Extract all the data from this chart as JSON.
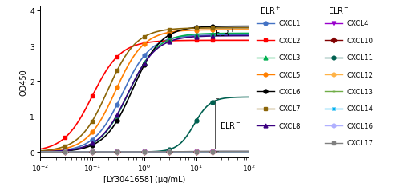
{
  "xlabel": "[LY3041658] (μg/mL)",
  "ylabel": "OD450",
  "xlim": [
    0.01,
    100
  ],
  "ylim": [
    -0.15,
    4.1
  ],
  "yticks": [
    0,
    1,
    2,
    3,
    4
  ],
  "series": [
    {
      "name": "CXCL1",
      "color": "#4472C4",
      "marker": "o",
      "group": "pos",
      "bottom": 0.0,
      "top": 3.3,
      "ec50": 0.38,
      "hill": 1.6
    },
    {
      "name": "CXCL2",
      "color": "#FF0000",
      "marker": "s",
      "group": "pos",
      "bottom": 0.0,
      "top": 3.15,
      "ec50": 0.1,
      "hill": 1.6
    },
    {
      "name": "CXCL3",
      "color": "#00B050",
      "marker": "^",
      "group": "pos",
      "bottom": 0.0,
      "top": 3.35,
      "ec50": 0.5,
      "hill": 1.6
    },
    {
      "name": "CXCL5",
      "color": "#FF7F00",
      "marker": "o",
      "group": "pos",
      "bottom": 0.0,
      "top": 3.45,
      "ec50": 0.28,
      "hill": 1.6
    },
    {
      "name": "CXCL6",
      "color": "#000000",
      "marker": "o",
      "group": "pos",
      "bottom": 0.0,
      "top": 3.55,
      "ec50": 0.6,
      "hill": 1.6
    },
    {
      "name": "CXCL7",
      "color": "#8B6508",
      "marker": "s",
      "group": "pos",
      "bottom": 0.0,
      "top": 3.5,
      "ec50": 0.2,
      "hill": 1.6
    },
    {
      "name": "CXCL8",
      "color": "#3B0080",
      "marker": "^",
      "group": "pos",
      "bottom": 0.0,
      "top": 3.28,
      "ec50": 0.48,
      "hill": 1.6
    },
    {
      "name": "CXCL4",
      "color": "#9900CC",
      "marker": "v",
      "group": "neg",
      "bottom": 0.0,
      "top": 0.01,
      "ec50": 1.0,
      "hill": 1.0
    },
    {
      "name": "CXCL10",
      "color": "#800000",
      "marker": "D",
      "group": "neg",
      "bottom": 0.0,
      "top": 0.01,
      "ec50": 1.0,
      "hill": 1.0
    },
    {
      "name": "CXCL11",
      "color": "#006050",
      "marker": "o",
      "group": "neg",
      "bottom": 0.0,
      "top": 1.55,
      "ec50": 9.0,
      "hill": 2.8
    },
    {
      "name": "CXCL12",
      "color": "#FFB347",
      "marker": "o",
      "group": "neg",
      "bottom": 0.0,
      "top": 0.01,
      "ec50": 1.0,
      "hill": 1.0
    },
    {
      "name": "CXCL13",
      "color": "#70AD47",
      "marker": "+",
      "group": "neg",
      "bottom": 0.0,
      "top": 0.01,
      "ec50": 1.0,
      "hill": 1.0
    },
    {
      "name": "CXCL14",
      "color": "#00B0F0",
      "marker": "x",
      "group": "neg",
      "bottom": 0.0,
      "top": 0.01,
      "ec50": 1.0,
      "hill": 1.0
    },
    {
      "name": "CXCL16",
      "color": "#B0B0FF",
      "marker": "o",
      "group": "neg",
      "bottom": 0.0,
      "top": 0.01,
      "ec50": 1.0,
      "hill": 1.0
    },
    {
      "name": "CXCL17",
      "color": "#808080",
      "marker": "s",
      "group": "neg",
      "bottom": 0.0,
      "top": 0.01,
      "ec50": 1.0,
      "hill": 1.0
    }
  ],
  "dose_points": [
    0.03,
    0.1,
    0.3,
    1.0,
    3.0,
    10.0,
    20.0
  ],
  "elr_pos_entries": [
    [
      "CXCL1",
      "#4472C4",
      "o"
    ],
    [
      "CXCL2",
      "#FF0000",
      "s"
    ],
    [
      "CXCL3",
      "#00B050",
      "^"
    ],
    [
      "CXCL5",
      "#FF7F00",
      "o"
    ],
    [
      "CXCL6",
      "#000000",
      "o"
    ],
    [
      "CXCL7",
      "#8B6508",
      "s"
    ],
    [
      "CXCL8",
      "#3B0080",
      "^"
    ]
  ],
  "elr_neg_entries": [
    [
      "CXCL4",
      "#9900CC",
      "v"
    ],
    [
      "CXCL10",
      "#800000",
      "D"
    ],
    [
      "CXCL11",
      "#006050",
      "o"
    ],
    [
      "CXCL12",
      "#FFB347",
      "o"
    ],
    [
      "CXCL13",
      "#70AD47",
      "+"
    ],
    [
      "CXCL14",
      "#00B0F0",
      "x"
    ],
    [
      "CXCL16",
      "#B0B0FF",
      "o"
    ],
    [
      "CXCL17",
      "#808080",
      "s"
    ]
  ]
}
